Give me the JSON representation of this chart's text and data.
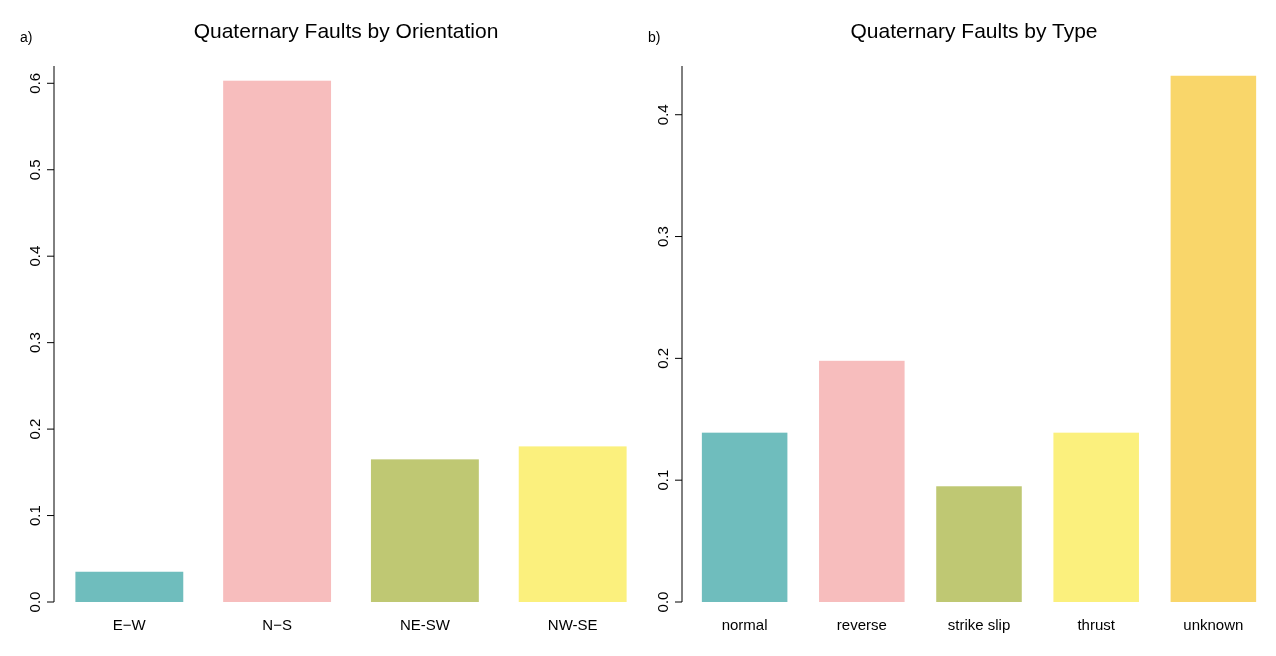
{
  "chart_data": [
    {
      "type": "bar",
      "title": "Quaternary Faults by Orientation",
      "annotations": [
        "a)"
      ],
      "categories": [
        "E−W",
        "N−S",
        "NE-SW",
        "NW-SE"
      ],
      "values": [
        0.035,
        0.603,
        0.165,
        0.18
      ],
      "colors": [
        "#6fbdbd",
        "#f7bdbd",
        "#bfc873",
        "#fbf07d"
      ],
      "ylim": [
        0,
        0.62
      ],
      "yticks": [
        {
          "value": 0,
          "label": "0.0"
        },
        0.1,
        0.2,
        0.3,
        0.4,
        0.5,
        0.6
      ]
    },
    {
      "type": "bar",
      "title": "Quaternary Faults by Type",
      "annotations": [
        "b)"
      ],
      "categories": [
        "normal",
        "reverse",
        "strike slip",
        "thrust",
        "unknown"
      ],
      "values": [
        0.139,
        0.198,
        0.095,
        0.139,
        0.432
      ],
      "colors": [
        "#6fbdbd",
        "#f7bdbd",
        "#bfc873",
        "#fbf07d",
        "#f9d66a"
      ],
      "ylim": [
        0,
        0.44
      ],
      "yticks": [
        {
          "value": 0,
          "label": "0.0"
        },
        0.1,
        0.2,
        0.3,
        0.4
      ]
    }
  ]
}
